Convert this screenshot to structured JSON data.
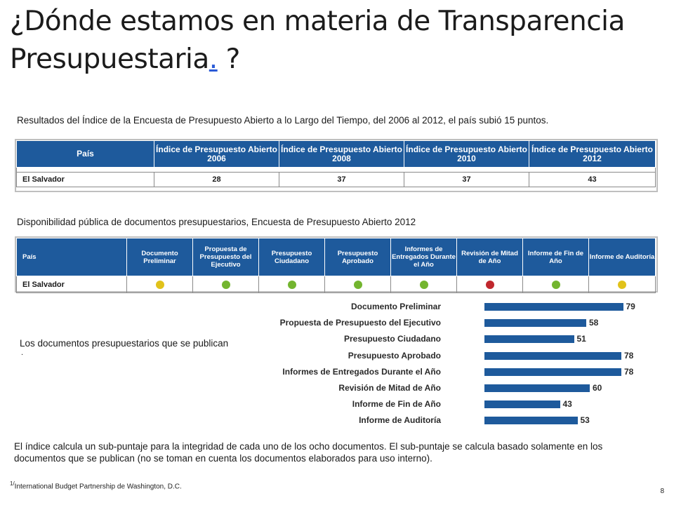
{
  "title": {
    "main": "¿Dónde estamos en materia de Transparencia Presupuestaria",
    "dot": ".",
    "end": "?"
  },
  "caption1": "Resultados del Índice de la Encuesta de Presupuesto Abierto a lo Largo del Tiempo, del 2006 al 2012, el país subió 15 puntos.",
  "table1": {
    "headers": [
      "País",
      "Índice de Presupuesto Abierto 2006",
      "Índice de Presupuesto Abierto 2008",
      "Índice de Presupuesto Abierto 2010",
      "Índice de Presupuesto Abierto 2012"
    ],
    "row": [
      "El Salvador",
      "28",
      "37",
      "37",
      "43"
    ]
  },
  "caption2": "Disponibilidad pública de documentos presupuestarios, Encuesta de Presupuesto Abierto 2012",
  "table2": {
    "headers": [
      "País",
      "Documento Preliminar",
      "Propuesta de Presupuesto del Ejecutivo",
      "Presupuesto Ciudadano",
      "Presupuesto Aprobado",
      "Informes de Entregados Durante el Año",
      "Revisión de Mitad de Año",
      "Informe de Fin de Año",
      "Informe de Auditoría"
    ],
    "country": "El Salvador",
    "status_colors": [
      "#e1c21a",
      "#73b52f",
      "#73b52f",
      "#73b52f",
      "#73b52f",
      "#c0272d",
      "#73b52f",
      "#e1c21a"
    ]
  },
  "caption3": "Los documentos presupuestarios que se publican",
  "caption3_dot": ".",
  "chart_data": {
    "type": "bar",
    "orientation": "horizontal",
    "categories": [
      "Documento Preliminar",
      "Propuesta de Presupuesto del Ejecutivo",
      "Presupuesto Ciudadano",
      "Presupuesto Aprobado",
      "Informes de Entregados Durante el Año",
      "Revisión de Mitad de Año",
      "Informe de Fin de Año",
      "Informe de Auditoría"
    ],
    "values": [
      79,
      58,
      51,
      78,
      78,
      60,
      43,
      53
    ],
    "labels": [
      "79",
      "58",
      "51",
      "78",
      "78",
      "60",
      "43",
      "53"
    ],
    "xlim": [
      0,
      100
    ],
    "bar_color": "#1e5a9c"
  },
  "paragraph": "El índice calcula un sub-puntaje para la integridad de cada uno de los ocho documentos. El sub-puntaje se calcula basado solamente en los documentos que se publican (no se toman en cuenta los documentos elaborados para uso interno).",
  "footnote": {
    "mark": "1/",
    "text": "International Budget Partnership de Washington, D.C."
  },
  "page_number": "8"
}
